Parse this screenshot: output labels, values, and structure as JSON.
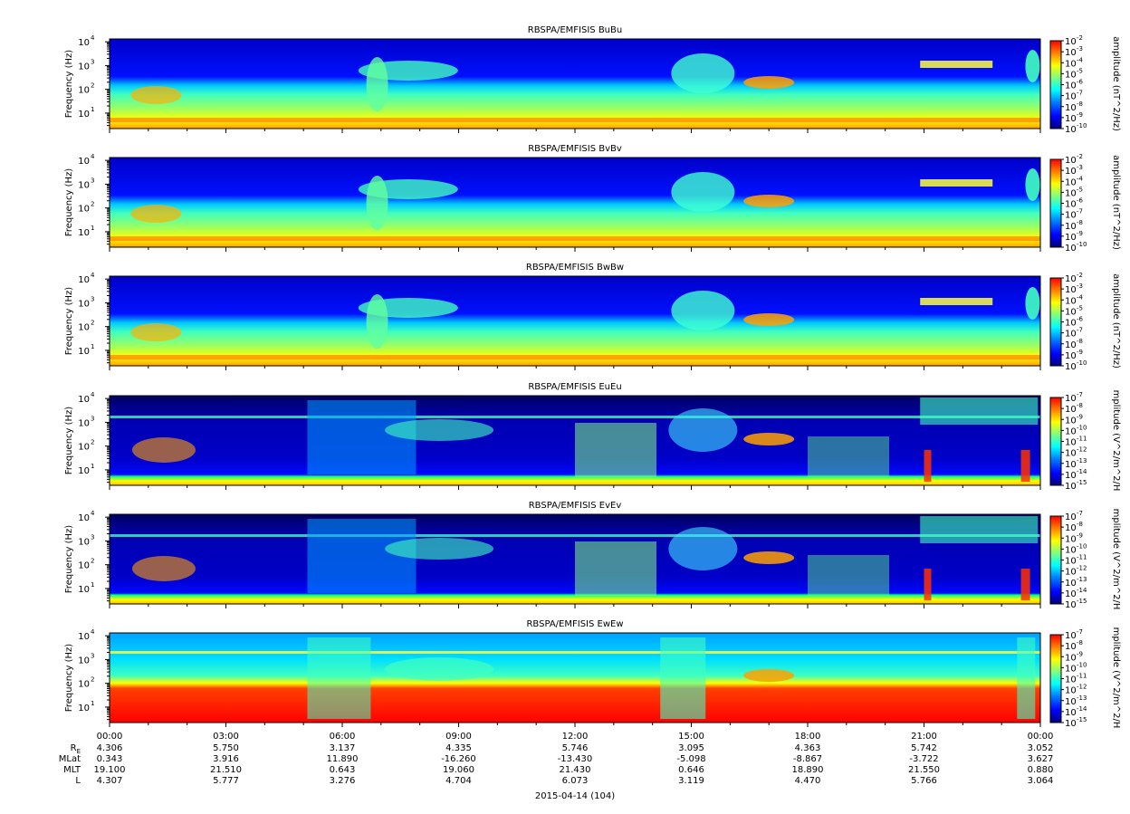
{
  "chart_data": {
    "type": "heatmap",
    "date_label": "2015-04-14 (104)",
    "x_axis": {
      "time_ticks": [
        "00:00",
        "03:00",
        "06:00",
        "09:00",
        "12:00",
        "15:00",
        "18:00",
        "21:00",
        "00:00"
      ],
      "range_hours": [
        0,
        24
      ]
    },
    "ephemeris": {
      "rows": [
        {
          "name": "R",
          "subscript": "E",
          "values": [
            "4.306",
            "5.750",
            "3.137",
            "4.335",
            "5.746",
            "3.095",
            "4.363",
            "5.742",
            "3.052"
          ]
        },
        {
          "name": "MLat",
          "values": [
            "0.343",
            "3.916",
            "11.890",
            "-16.260",
            "-13.430",
            "-5.098",
            "-8.867",
            "-3.722",
            "3.627"
          ]
        },
        {
          "name": "MLT",
          "values": [
            "19.100",
            "21.510",
            "0.643",
            "19.060",
            "21.430",
            "0.646",
            "18.890",
            "21.550",
            "0.880"
          ]
        },
        {
          "name": "L",
          "values": [
            "4.307",
            "5.777",
            "3.276",
            "4.704",
            "6.073",
            "3.119",
            "4.470",
            "5.766",
            "3.064"
          ]
        }
      ]
    },
    "panels": [
      {
        "title": "RBSPA/EMFISIS  BuBu",
        "ylabel": "Frequency (Hz)",
        "yticks": [
          "10",
          "10",
          "10",
          "10"
        ],
        "yexp": [
          "1",
          "2",
          "3",
          "4"
        ],
        "colorbar": {
          "label": "amplitude (nT^2/Hz)",
          "exponents": [
            "-2",
            "-3",
            "-4",
            "-5",
            "-6",
            "-7",
            "-8",
            "-9",
            "-10"
          ],
          "range_log10": [
            -10,
            -2
          ]
        },
        "kind": "B"
      },
      {
        "title": "RBSPA/EMFISIS  BvBv",
        "ylabel": "Frequency (Hz)",
        "yticks": [
          "10",
          "10",
          "10",
          "10"
        ],
        "yexp": [
          "1",
          "2",
          "3",
          "4"
        ],
        "colorbar": {
          "label": "amplitude (nT^2/Hz)",
          "exponents": [
            "-2",
            "-3",
            "-4",
            "-5",
            "-6",
            "-7",
            "-8",
            "-9",
            "-10"
          ],
          "range_log10": [
            -10,
            -2
          ]
        },
        "kind": "B"
      },
      {
        "title": "RBSPA/EMFISIS  BwBw",
        "ylabel": "Frequency (Hz)",
        "yticks": [
          "10",
          "10",
          "10",
          "10"
        ],
        "yexp": [
          "1",
          "2",
          "3",
          "4"
        ],
        "colorbar": {
          "label": "amplitude (nT^2/Hz)",
          "exponents": [
            "-2",
            "-3",
            "-4",
            "-5",
            "-6",
            "-7",
            "-8",
            "-9",
            "-10"
          ],
          "range_log10": [
            -10,
            -2
          ]
        },
        "kind": "B"
      },
      {
        "title": "RBSPA/EMFISIS  EuEu",
        "ylabel": "Frequency (Hz)",
        "yticks": [
          "10",
          "10",
          "10",
          "10"
        ],
        "yexp": [
          "1",
          "2",
          "3",
          "4"
        ],
        "colorbar": {
          "label": "mplitude (V^2/m^2/H",
          "exponents": [
            "-7",
            "-8",
            "-9",
            "-10",
            "-11",
            "-12",
            "-13",
            "-14",
            "-15"
          ],
          "range_log10": [
            -15,
            -7
          ]
        },
        "kind": "E"
      },
      {
        "title": "RBSPA/EMFISIS  EvEv",
        "ylabel": "Frequency (Hz)",
        "yticks": [
          "10",
          "10",
          "10",
          "10"
        ],
        "yexp": [
          "1",
          "2",
          "3",
          "4"
        ],
        "colorbar": {
          "label": "mplitude (V^2/m^2/H",
          "exponents": [
            "-7",
            "-8",
            "-9",
            "-10",
            "-11",
            "-12",
            "-13",
            "-14",
            "-15"
          ],
          "range_log10": [
            -15,
            -7
          ]
        },
        "kind": "E"
      },
      {
        "title": "RBSPA/EMFISIS  EwEw",
        "ylabel": "Frequency (Hz)",
        "yticks": [
          "10",
          "10",
          "10",
          "10"
        ],
        "yexp": [
          "1",
          "2",
          "3",
          "4"
        ],
        "colorbar": {
          "label": "mplitude (V^2/m^2/H",
          "exponents": [
            "-7",
            "-8",
            "-9",
            "-10",
            "-11",
            "-12",
            "-13",
            "-14",
            "-15"
          ],
          "range_log10": [
            -15,
            -7
          ]
        },
        "kind": "Ew"
      }
    ],
    "colorscale": [
      "#00007f",
      "#0000ff",
      "#007fff",
      "#00ffff",
      "#7fff7f",
      "#ffff00",
      "#ff7f00",
      "#ff0000"
    ]
  }
}
